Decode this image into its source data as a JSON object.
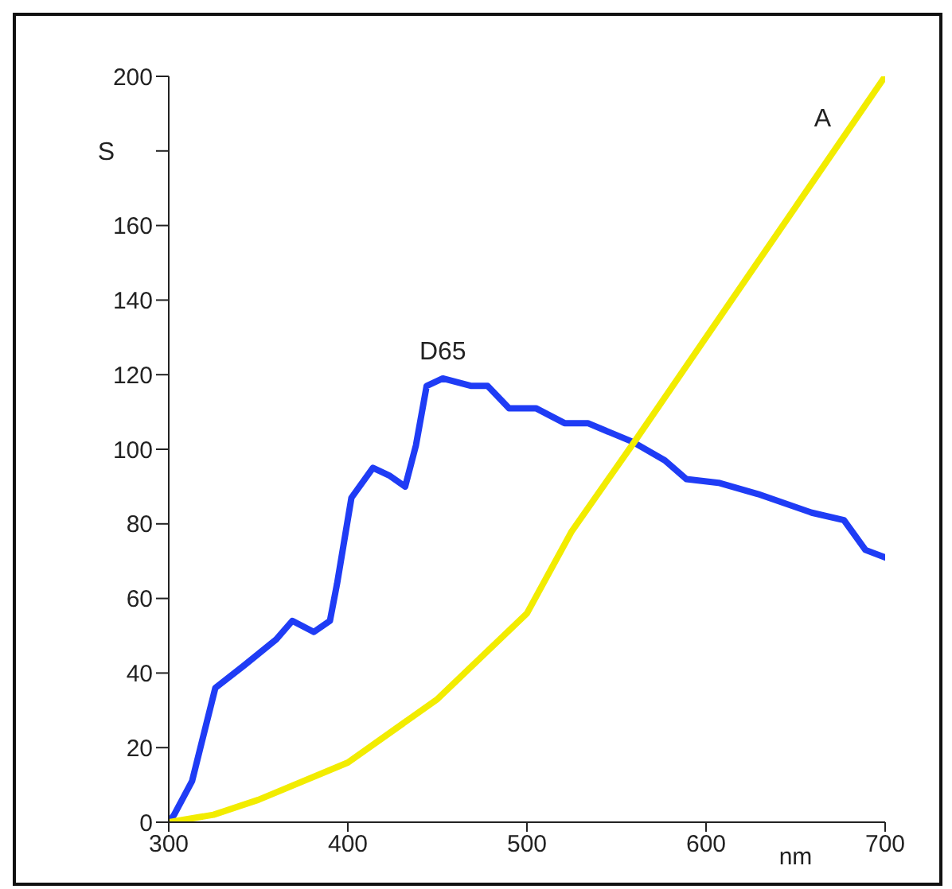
{
  "chart_data": {
    "type": "line",
    "xlabel": "nm",
    "ylabel": "S",
    "xlim": [
      300,
      700
    ],
    "xticks": [
      300,
      400,
      500,
      600,
      700
    ],
    "ylim": [
      0,
      200
    ],
    "yticks": [
      0,
      20,
      40,
      60,
      80,
      100,
      120,
      140,
      160,
      {
        "value": 180,
        "label": null
      },
      200
    ],
    "grid": false,
    "legend": false,
    "marker": "none",
    "line_style": "solid",
    "series": [
      {
        "color": "#1f3cf5",
        "x": [
          300,
          303,
          313,
          326,
          342,
          360,
          369,
          381,
          390,
          394,
          402,
          414,
          423,
          432,
          438,
          444,
          453,
          469,
          478,
          490,
          505,
          521,
          534,
          559,
          577,
          589,
          607,
          629,
          659,
          677,
          689,
          700
        ],
        "values": [
          0,
          2,
          11,
          36,
          42,
          49,
          54,
          51,
          54,
          64,
          87,
          95,
          93,
          90,
          101,
          117,
          119,
          117,
          117,
          111,
          111,
          107,
          107,
          102,
          97,
          92,
          91,
          88,
          83,
          81,
          73,
          71
        ]
      },
      {
        "color": "#f2ec00",
        "x": [
          300,
          325,
          350,
          400,
          450,
          500,
          525,
          560,
          600,
          650,
          700
        ],
        "values": [
          0,
          2,
          6,
          16,
          33,
          56,
          78,
          102,
          130,
          165,
          200
        ]
      }
    ],
    "annotations": [
      "D65",
      "A"
    ]
  }
}
